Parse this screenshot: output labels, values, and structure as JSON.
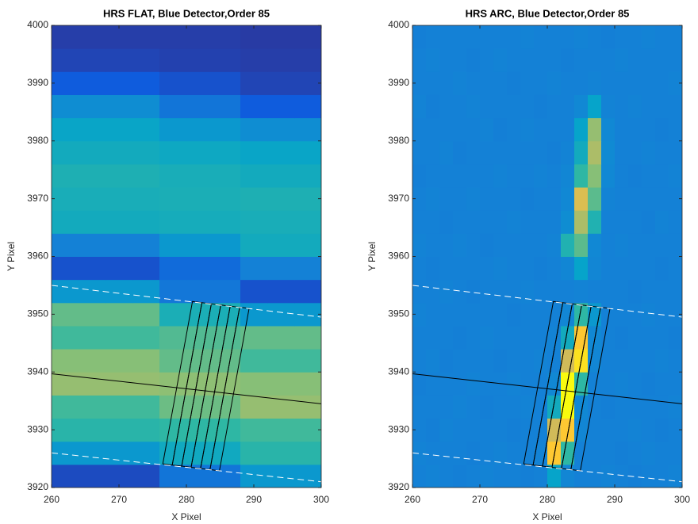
{
  "chart_data": [
    {
      "type": "heatmap",
      "title": "HRS FLAT, Blue Detector,Order 85",
      "xlabel": "X Pixel",
      "ylabel": "Y Pixel",
      "xlim": [
        260,
        300
      ],
      "ylim": [
        3920,
        4000
      ],
      "xticks": [
        260,
        270,
        280,
        290,
        300
      ],
      "yticks": [
        3920,
        3930,
        3940,
        3950,
        3960,
        3970,
        3980,
        3990,
        4000
      ],
      "clim": [
        0,
        1
      ],
      "colormap": "parula",
      "x": [
        262,
        266,
        270,
        274,
        278,
        282,
        286,
        290,
        294,
        298
      ],
      "y": [
        3922,
        3926,
        3930,
        3934,
        3938,
        3942,
        3946,
        3950,
        3954,
        3958,
        3962,
        3966,
        3970,
        3974,
        3978,
        3982,
        3986,
        3990,
        3994,
        3998
      ],
      "z": [
        [
          0.1,
          0.1,
          0.1,
          0.1,
          0.25,
          0.25,
          0.25,
          0.4,
          0.4,
          0.4
        ],
        [
          0.4,
          0.4,
          0.4,
          0.4,
          0.49,
          0.49,
          0.49,
          0.58,
          0.58,
          0.58
        ],
        [
          0.58,
          0.58,
          0.58,
          0.58,
          0.6,
          0.6,
          0.6,
          0.62,
          0.62,
          0.62
        ],
        [
          0.62,
          0.62,
          0.62,
          0.62,
          0.67,
          0.67,
          0.67,
          0.72,
          0.72,
          0.72
        ],
        [
          0.72,
          0.72,
          0.72,
          0.72,
          0.71,
          0.71,
          0.71,
          0.7,
          0.7,
          0.7
        ],
        [
          0.7,
          0.7,
          0.7,
          0.7,
          0.66,
          0.66,
          0.66,
          0.62,
          0.62,
          0.62
        ],
        [
          0.62,
          0.62,
          0.62,
          0.62,
          0.64,
          0.64,
          0.64,
          0.66,
          0.66,
          0.66
        ],
        [
          0.66,
          0.66,
          0.66,
          0.66,
          0.53,
          0.53,
          0.53,
          0.4,
          0.4,
          0.4
        ],
        [
          0.4,
          0.4,
          0.4,
          0.4,
          0.26,
          0.26,
          0.26,
          0.12,
          0.12,
          0.12
        ],
        [
          0.12,
          0.12,
          0.12,
          0.12,
          0.21,
          0.21,
          0.21,
          0.3,
          0.3,
          0.3
        ],
        [
          0.3,
          0.3,
          0.3,
          0.3,
          0.4,
          0.4,
          0.4,
          0.5,
          0.5,
          0.5
        ],
        [
          0.5,
          0.5,
          0.5,
          0.5,
          0.51,
          0.51,
          0.51,
          0.52,
          0.52,
          0.52
        ],
        [
          0.52,
          0.52,
          0.52,
          0.52,
          0.53,
          0.53,
          0.53,
          0.54,
          0.54,
          0.54
        ],
        [
          0.54,
          0.54,
          0.54,
          0.54,
          0.52,
          0.52,
          0.52,
          0.5,
          0.5,
          0.5
        ],
        [
          0.5,
          0.5,
          0.5,
          0.5,
          0.48,
          0.48,
          0.48,
          0.46,
          0.46,
          0.46
        ],
        [
          0.46,
          0.46,
          0.46,
          0.46,
          0.4,
          0.4,
          0.4,
          0.35,
          0.35,
          0.35
        ],
        [
          0.35,
          0.35,
          0.35,
          0.35,
          0.25,
          0.25,
          0.25,
          0.15,
          0.15,
          0.15
        ],
        [
          0.15,
          0.15,
          0.15,
          0.15,
          0.12,
          0.12,
          0.12,
          0.08,
          0.08,
          0.08
        ],
        [
          0.08,
          0.08,
          0.08,
          0.08,
          0.07,
          0.07,
          0.07,
          0.06,
          0.06,
          0.06
        ],
        [
          0.06,
          0.06,
          0.06,
          0.06,
          0.06,
          0.06,
          0.06,
          0.05,
          0.05,
          0.05
        ]
      ],
      "lines": [
        {
          "x": [
            260,
            300
          ],
          "y": [
            3939.7,
            3934.5
          ],
          "color": "#000000",
          "style": "solid"
        },
        {
          "x": [
            260,
            300
          ],
          "y": [
            3955,
            3949.5
          ],
          "color": "#ffffff",
          "style": "dashed"
        },
        {
          "x": [
            260,
            300
          ],
          "y": [
            3926,
            3921
          ],
          "color": "#ffffff",
          "style": "dashed"
        }
      ],
      "boxes": [
        {
          "x": [
            276.5,
            277.9,
            282.3,
            280.9
          ],
          "y": [
            3924.1,
            3923.9,
            3952,
            3952.2
          ]
        },
        {
          "x": [
            277.9,
            279.3,
            283.7,
            282.3
          ],
          "y": [
            3923.9,
            3923.7,
            3951.8,
            3952
          ]
        },
        {
          "x": [
            279.3,
            280.7,
            285.1,
            283.7
          ],
          "y": [
            3923.7,
            3923.5,
            3951.6,
            3951.8
          ]
        },
        {
          "x": [
            280.7,
            282.1,
            286.5,
            285.1
          ],
          "y": [
            3923.5,
            3923.3,
            3951.4,
            3951.6
          ]
        },
        {
          "x": [
            282.1,
            283.5,
            287.9,
            286.5
          ],
          "y": [
            3923.3,
            3923.1,
            3951.2,
            3951.4
          ]
        },
        {
          "x": [
            283.5,
            284.9,
            289.3,
            287.9
          ],
          "y": [
            3923.1,
            3922.9,
            3951,
            3951.2
          ]
        }
      ],
      "box_color": "#000000"
    },
    {
      "type": "heatmap",
      "title": "HRS ARC, Blue Detector,Order 85",
      "xlabel": "X Pixel",
      "ylabel": "Y Pixel",
      "xlim": [
        260,
        300
      ],
      "ylim": [
        3920,
        4000
      ],
      "xticks": [
        260,
        270,
        280,
        290,
        300
      ],
      "yticks": [
        3920,
        3930,
        3940,
        3950,
        3960,
        3970,
        3980,
        3990,
        4000
      ],
      "clim": [
        0,
        1
      ],
      "colormap": "parula",
      "x": [
        261,
        263,
        265,
        267,
        269,
        271,
        273,
        275,
        277,
        279,
        281,
        283,
        285,
        287,
        289,
        291,
        293,
        295,
        297,
        299
      ],
      "y": [
        3922,
        3926,
        3930,
        3934,
        3938,
        3942,
        3946,
        3950,
        3954,
        3958,
        3962,
        3966,
        3970,
        3974,
        3978,
        3982,
        3986,
        3990,
        3994,
        3998
      ],
      "z": [
        [
          0.3,
          0.31,
          0.3,
          0.29,
          0.3,
          0.31,
          0.3,
          0.3,
          0.29,
          0.3,
          0.45,
          0.32,
          0.3,
          0.3,
          0.31,
          0.3,
          0.29,
          0.3,
          0.3,
          0.31
        ],
        [
          0.31,
          0.3,
          0.3,
          0.3,
          0.29,
          0.3,
          0.31,
          0.3,
          0.3,
          0.31,
          0.9,
          0.6,
          0.3,
          0.3,
          0.3,
          0.29,
          0.3,
          0.31,
          0.3,
          0.3
        ],
        [
          0.3,
          0.29,
          0.31,
          0.3,
          0.3,
          0.3,
          0.3,
          0.29,
          0.3,
          0.3,
          0.8,
          0.9,
          0.32,
          0.3,
          0.3,
          0.3,
          0.31,
          0.3,
          0.29,
          0.3
        ],
        [
          0.3,
          0.3,
          0.3,
          0.31,
          0.3,
          0.29,
          0.3,
          0.3,
          0.31,
          0.3,
          0.5,
          1.0,
          0.33,
          0.3,
          0.29,
          0.3,
          0.3,
          0.3,
          0.3,
          0.31
        ],
        [
          0.29,
          0.3,
          0.3,
          0.3,
          0.31,
          0.3,
          0.3,
          0.31,
          0.3,
          0.3,
          0.33,
          1.0,
          0.6,
          0.3,
          0.3,
          0.31,
          0.3,
          0.29,
          0.3,
          0.3
        ],
        [
          0.3,
          0.31,
          0.29,
          0.3,
          0.3,
          0.3,
          0.29,
          0.3,
          0.3,
          0.31,
          0.3,
          0.8,
          0.95,
          0.32,
          0.3,
          0.3,
          0.3,
          0.3,
          0.31,
          0.3
        ],
        [
          0.3,
          0.3,
          0.3,
          0.29,
          0.3,
          0.31,
          0.3,
          0.3,
          0.3,
          0.3,
          0.31,
          0.5,
          0.9,
          0.33,
          0.3,
          0.29,
          0.3,
          0.3,
          0.3,
          0.29
        ],
        [
          0.31,
          0.3,
          0.3,
          0.3,
          0.3,
          0.3,
          0.3,
          0.29,
          0.3,
          0.3,
          0.3,
          0.32,
          0.6,
          0.4,
          0.3,
          0.3,
          0.3,
          0.31,
          0.3,
          0.3
        ],
        [
          0.3,
          0.3,
          0.31,
          0.3,
          0.29,
          0.3,
          0.3,
          0.3,
          0.31,
          0.3,
          0.3,
          0.3,
          0.31,
          0.3,
          0.3,
          0.3,
          0.29,
          0.3,
          0.3,
          0.3
        ],
        [
          0.3,
          0.29,
          0.3,
          0.3,
          0.3,
          0.3,
          0.31,
          0.3,
          0.3,
          0.29,
          0.3,
          0.32,
          0.45,
          0.32,
          0.3,
          0.3,
          0.3,
          0.3,
          0.29,
          0.3
        ],
        [
          0.31,
          0.3,
          0.3,
          0.31,
          0.3,
          0.29,
          0.3,
          0.3,
          0.3,
          0.3,
          0.31,
          0.55,
          0.65,
          0.33,
          0.3,
          0.31,
          0.3,
          0.3,
          0.3,
          0.3
        ],
        [
          0.3,
          0.3,
          0.29,
          0.3,
          0.3,
          0.3,
          0.3,
          0.31,
          0.3,
          0.3,
          0.3,
          0.35,
          0.75,
          0.55,
          0.3,
          0.3,
          0.3,
          0.29,
          0.31,
          0.3
        ],
        [
          0.3,
          0.31,
          0.3,
          0.3,
          0.31,
          0.3,
          0.3,
          0.3,
          0.29,
          0.3,
          0.3,
          0.33,
          0.82,
          0.65,
          0.31,
          0.3,
          0.3,
          0.3,
          0.3,
          0.3
        ],
        [
          0.29,
          0.3,
          0.3,
          0.3,
          0.3,
          0.3,
          0.31,
          0.3,
          0.3,
          0.31,
          0.3,
          0.32,
          0.6,
          0.7,
          0.33,
          0.3,
          0.29,
          0.3,
          0.3,
          0.31
        ],
        [
          0.3,
          0.3,
          0.31,
          0.29,
          0.3,
          0.3,
          0.3,
          0.3,
          0.3,
          0.3,
          0.29,
          0.31,
          0.5,
          0.75,
          0.34,
          0.3,
          0.3,
          0.31,
          0.3,
          0.3
        ],
        [
          0.3,
          0.3,
          0.3,
          0.3,
          0.3,
          0.31,
          0.29,
          0.3,
          0.31,
          0.3,
          0.3,
          0.3,
          0.45,
          0.72,
          0.33,
          0.3,
          0.3,
          0.3,
          0.29,
          0.3
        ],
        [
          0.31,
          0.29,
          0.3,
          0.3,
          0.31,
          0.3,
          0.3,
          0.3,
          0.3,
          0.29,
          0.3,
          0.3,
          0.33,
          0.45,
          0.31,
          0.3,
          0.31,
          0.3,
          0.3,
          0.3
        ],
        [
          0.3,
          0.3,
          0.3,
          0.31,
          0.3,
          0.3,
          0.3,
          0.29,
          0.3,
          0.3,
          0.31,
          0.3,
          0.3,
          0.31,
          0.3,
          0.3,
          0.3,
          0.3,
          0.3,
          0.31
        ],
        [
          0.3,
          0.31,
          0.3,
          0.3,
          0.29,
          0.3,
          0.31,
          0.3,
          0.3,
          0.3,
          0.3,
          0.29,
          0.3,
          0.3,
          0.3,
          0.31,
          0.3,
          0.3,
          0.3,
          0.3
        ],
        [
          0.29,
          0.3,
          0.3,
          0.3,
          0.3,
          0.3,
          0.3,
          0.3,
          0.31,
          0.3,
          0.3,
          0.3,
          0.31,
          0.3,
          0.29,
          0.3,
          0.3,
          0.31,
          0.3,
          0.3
        ]
      ],
      "lines": [
        {
          "x": [
            260,
            300
          ],
          "y": [
            3939.7,
            3934.5
          ],
          "color": "#000000",
          "style": "solid"
        },
        {
          "x": [
            260,
            300
          ],
          "y": [
            3955,
            3949.5
          ],
          "color": "#ffffff",
          "style": "dashed"
        },
        {
          "x": [
            260,
            300
          ],
          "y": [
            3926,
            3921
          ],
          "color": "#ffffff",
          "style": "dashed"
        }
      ],
      "boxes": [
        {
          "x": [
            276.5,
            277.9,
            282.3,
            280.9
          ],
          "y": [
            3924.1,
            3923.9,
            3952,
            3952.2
          ]
        },
        {
          "x": [
            277.9,
            279.3,
            283.7,
            282.3
          ],
          "y": [
            3923.9,
            3923.7,
            3951.8,
            3952
          ]
        },
        {
          "x": [
            279.3,
            280.7,
            285.1,
            283.7
          ],
          "y": [
            3923.7,
            3923.5,
            3951.6,
            3951.8
          ]
        },
        {
          "x": [
            280.7,
            282.1,
            286.5,
            285.1
          ],
          "y": [
            3923.5,
            3923.3,
            3951.4,
            3951.6
          ]
        },
        {
          "x": [
            282.1,
            283.5,
            287.9,
            286.5
          ],
          "y": [
            3923.3,
            3923.1,
            3951.2,
            3951.4
          ]
        },
        {
          "x": [
            283.5,
            284.9,
            289.3,
            287.9
          ],
          "y": [
            3923.1,
            3922.9,
            3951,
            3951.2
          ]
        }
      ],
      "box_color": "#000000"
    }
  ]
}
